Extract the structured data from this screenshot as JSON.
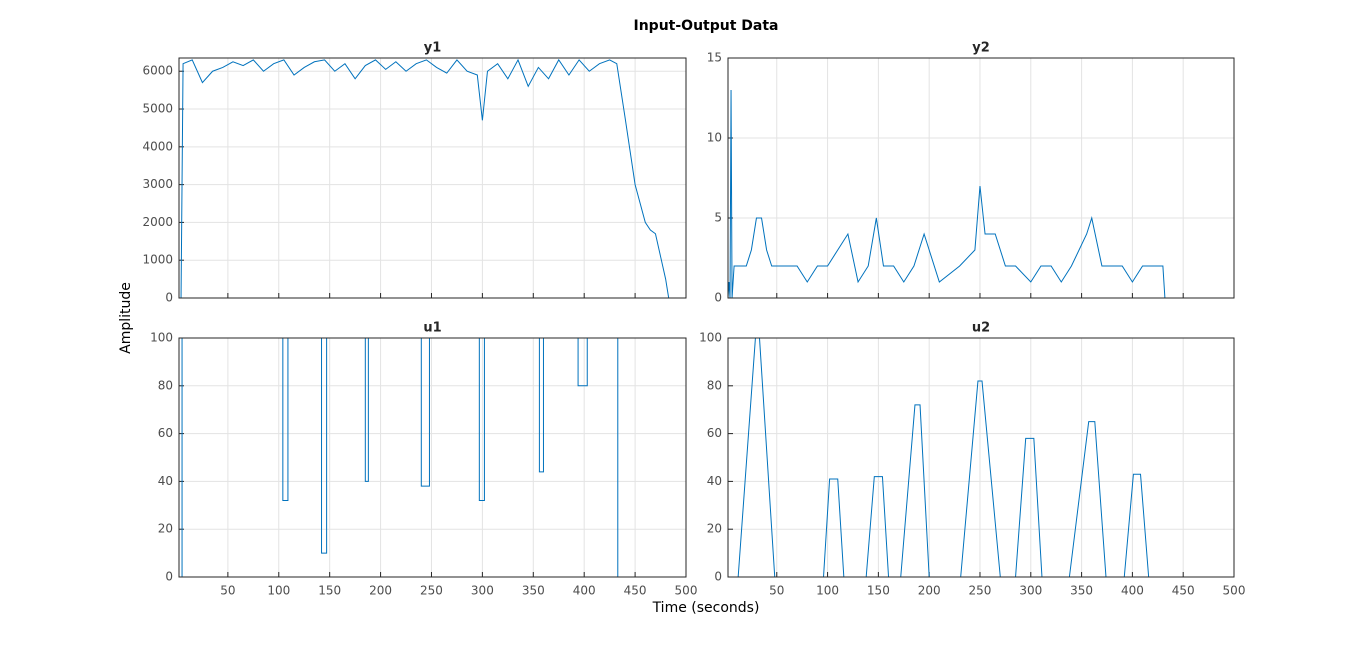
{
  "title": "Input-Output Data",
  "xlabel": "Time (seconds)",
  "ylabel": "Amplitude",
  "chart_data": [
    {
      "type": "line",
      "title": "y1",
      "grid": true,
      "show_xtick_labels": false,
      "xlim": [
        2,
        500
      ],
      "xticks": [
        50,
        100,
        150,
        200,
        250,
        300,
        350,
        400,
        450,
        500
      ],
      "ylim": [
        0,
        6350
      ],
      "yticks": [
        0,
        1000,
        2000,
        3000,
        4000,
        5000,
        6000
      ],
      "x": [
        2,
        4,
        6,
        15,
        25,
        35,
        45,
        55,
        65,
        75,
        85,
        95,
        105,
        115,
        125,
        135,
        145,
        155,
        165,
        175,
        185,
        195,
        205,
        215,
        225,
        235,
        245,
        255,
        265,
        275,
        285,
        295,
        300,
        305,
        315,
        325,
        335,
        345,
        355,
        365,
        375,
        385,
        395,
        405,
        415,
        425,
        432,
        440,
        445,
        450,
        455,
        460,
        465,
        470,
        475,
        480,
        483
      ],
      "series": [
        {
          "color": "#0072bd",
          "values": [
            0,
            0,
            6200,
            6300,
            5700,
            6000,
            6100,
            6250,
            6150,
            6300,
            6000,
            6200,
            6300,
            5900,
            6100,
            6250,
            6300,
            6000,
            6200,
            5800,
            6150,
            6300,
            6050,
            6250,
            6000,
            6200,
            6300,
            6100,
            5950,
            6300,
            6000,
            5900,
            4700,
            6000,
            6200,
            5800,
            6300,
            5600,
            6100,
            5800,
            6300,
            5900,
            6300,
            6000,
            6200,
            6300,
            6200,
            4800,
            3900,
            3000,
            2500,
            2000,
            1800,
            1700,
            1100,
            500,
            0
          ]
        }
      ]
    },
    {
      "type": "line",
      "title": "y2",
      "grid": true,
      "show_xtick_labels": false,
      "xlim": [
        2,
        500
      ],
      "xticks": [
        50,
        100,
        150,
        200,
        250,
        300,
        350,
        400,
        450,
        500
      ],
      "ylim": [
        0,
        15
      ],
      "yticks": [
        0,
        5,
        10,
        15
      ],
      "x": [
        2,
        3,
        4,
        5,
        6,
        8,
        20,
        25,
        30,
        35,
        40,
        45,
        55,
        70,
        80,
        90,
        100,
        110,
        120,
        130,
        140,
        148,
        155,
        165,
        175,
        185,
        195,
        210,
        230,
        245,
        250,
        255,
        265,
        275,
        285,
        300,
        310,
        320,
        330,
        340,
        355,
        360,
        370,
        380,
        390,
        400,
        410,
        420,
        430,
        432,
        485
      ],
      "series": [
        {
          "color": "#0072bd",
          "values": [
            0,
            1,
            0,
            13,
            0,
            2,
            2,
            3,
            5,
            5,
            3,
            2,
            2,
            2,
            1,
            2,
            2,
            3,
            4,
            1,
            2,
            5,
            2,
            2,
            1,
            2,
            4,
            1,
            2,
            3,
            7,
            4,
            4,
            2,
            2,
            1,
            2,
            2,
            1,
            2,
            4,
            5,
            2,
            2,
            2,
            1,
            2,
            2,
            2,
            0,
            0
          ]
        }
      ]
    },
    {
      "type": "line",
      "title": "u1",
      "grid": true,
      "show_xtick_labels": true,
      "xlim": [
        2,
        500
      ],
      "xticks": [
        50,
        100,
        150,
        200,
        250,
        300,
        350,
        400,
        450,
        500
      ],
      "ylim": [
        0,
        100
      ],
      "yticks": [
        0,
        20,
        40,
        60,
        80,
        100
      ],
      "x": [
        2,
        5,
        5,
        104,
        104,
        109,
        109,
        142,
        142,
        147,
        147,
        185,
        185,
        188,
        188,
        240,
        240,
        248,
        248,
        297,
        297,
        302,
        302,
        356,
        356,
        360,
        360,
        394,
        394,
        403,
        403,
        433,
        433,
        485
      ],
      "series": [
        {
          "color": "#0072bd",
          "values": [
            0,
            0,
            100,
            100,
            32,
            32,
            100,
            100,
            10,
            10,
            100,
            100,
            40,
            40,
            100,
            100,
            38,
            38,
            100,
            100,
            32,
            32,
            100,
            100,
            44,
            44,
            100,
            100,
            80,
            80,
            100,
            100,
            0,
            0
          ]
        }
      ]
    },
    {
      "type": "line",
      "title": "u2",
      "grid": true,
      "show_xtick_labels": true,
      "xlim": [
        2,
        500
      ],
      "xticks": [
        50,
        100,
        150,
        200,
        250,
        300,
        350,
        400,
        450,
        500
      ],
      "ylim": [
        0,
        100
      ],
      "yticks": [
        0,
        20,
        40,
        60,
        80,
        100
      ],
      "x": [
        2,
        12,
        29,
        33,
        48,
        96,
        102,
        110,
        116,
        138,
        146,
        154,
        160,
        172,
        186,
        191,
        200,
        231,
        248,
        252,
        270,
        285,
        295,
        303,
        311,
        338,
        357,
        363,
        374,
        392,
        401,
        408,
        416,
        485
      ],
      "series": [
        {
          "color": "#0072bd",
          "values": [
            0,
            0,
            100,
            100,
            0,
            0,
            41,
            41,
            0,
            0,
            42,
            42,
            0,
            0,
            72,
            72,
            0,
            0,
            82,
            82,
            0,
            0,
            58,
            58,
            0,
            0,
            65,
            65,
            0,
            0,
            43,
            43,
            0,
            0
          ]
        }
      ]
    }
  ]
}
